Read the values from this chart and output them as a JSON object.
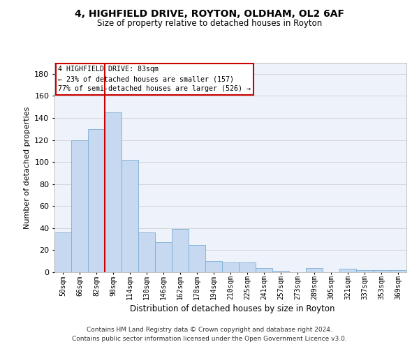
{
  "title1": "4, HIGHFIELD DRIVE, ROYTON, OLDHAM, OL2 6AF",
  "title2": "Size of property relative to detached houses in Royton",
  "xlabel": "Distribution of detached houses by size in Royton",
  "ylabel": "Number of detached properties",
  "categories": [
    "50sqm",
    "66sqm",
    "82sqm",
    "98sqm",
    "114sqm",
    "130sqm",
    "146sqm",
    "162sqm",
    "178sqm",
    "194sqm",
    "210sqm",
    "225sqm",
    "241sqm",
    "257sqm",
    "273sqm",
    "289sqm",
    "305sqm",
    "321sqm",
    "337sqm",
    "353sqm",
    "369sqm"
  ],
  "values": [
    36,
    120,
    130,
    145,
    102,
    36,
    27,
    39,
    25,
    10,
    9,
    9,
    4,
    1,
    0,
    4,
    0,
    3,
    2,
    2,
    2
  ],
  "bar_color": "#c6d9f1",
  "bar_edge_color": "#7aadd4",
  "property_line_x": 2.5,
  "annotation_text_line1": "4 HIGHFIELD DRIVE: 83sqm",
  "annotation_text_line2": "← 23% of detached houses are smaller (157)",
  "annotation_text_line3": "77% of semi-detached houses are larger (526) →",
  "annotation_box_color": "#cc0000",
  "ylim": [
    0,
    190
  ],
  "yticks": [
    0,
    20,
    40,
    60,
    80,
    100,
    120,
    140,
    160,
    180
  ],
  "footer1": "Contains HM Land Registry data © Crown copyright and database right 2024.",
  "footer2": "Contains public sector information licensed under the Open Government Licence v3.0.",
  "bg_color": "#eef2fb",
  "grid_color": "#d0d0d0"
}
